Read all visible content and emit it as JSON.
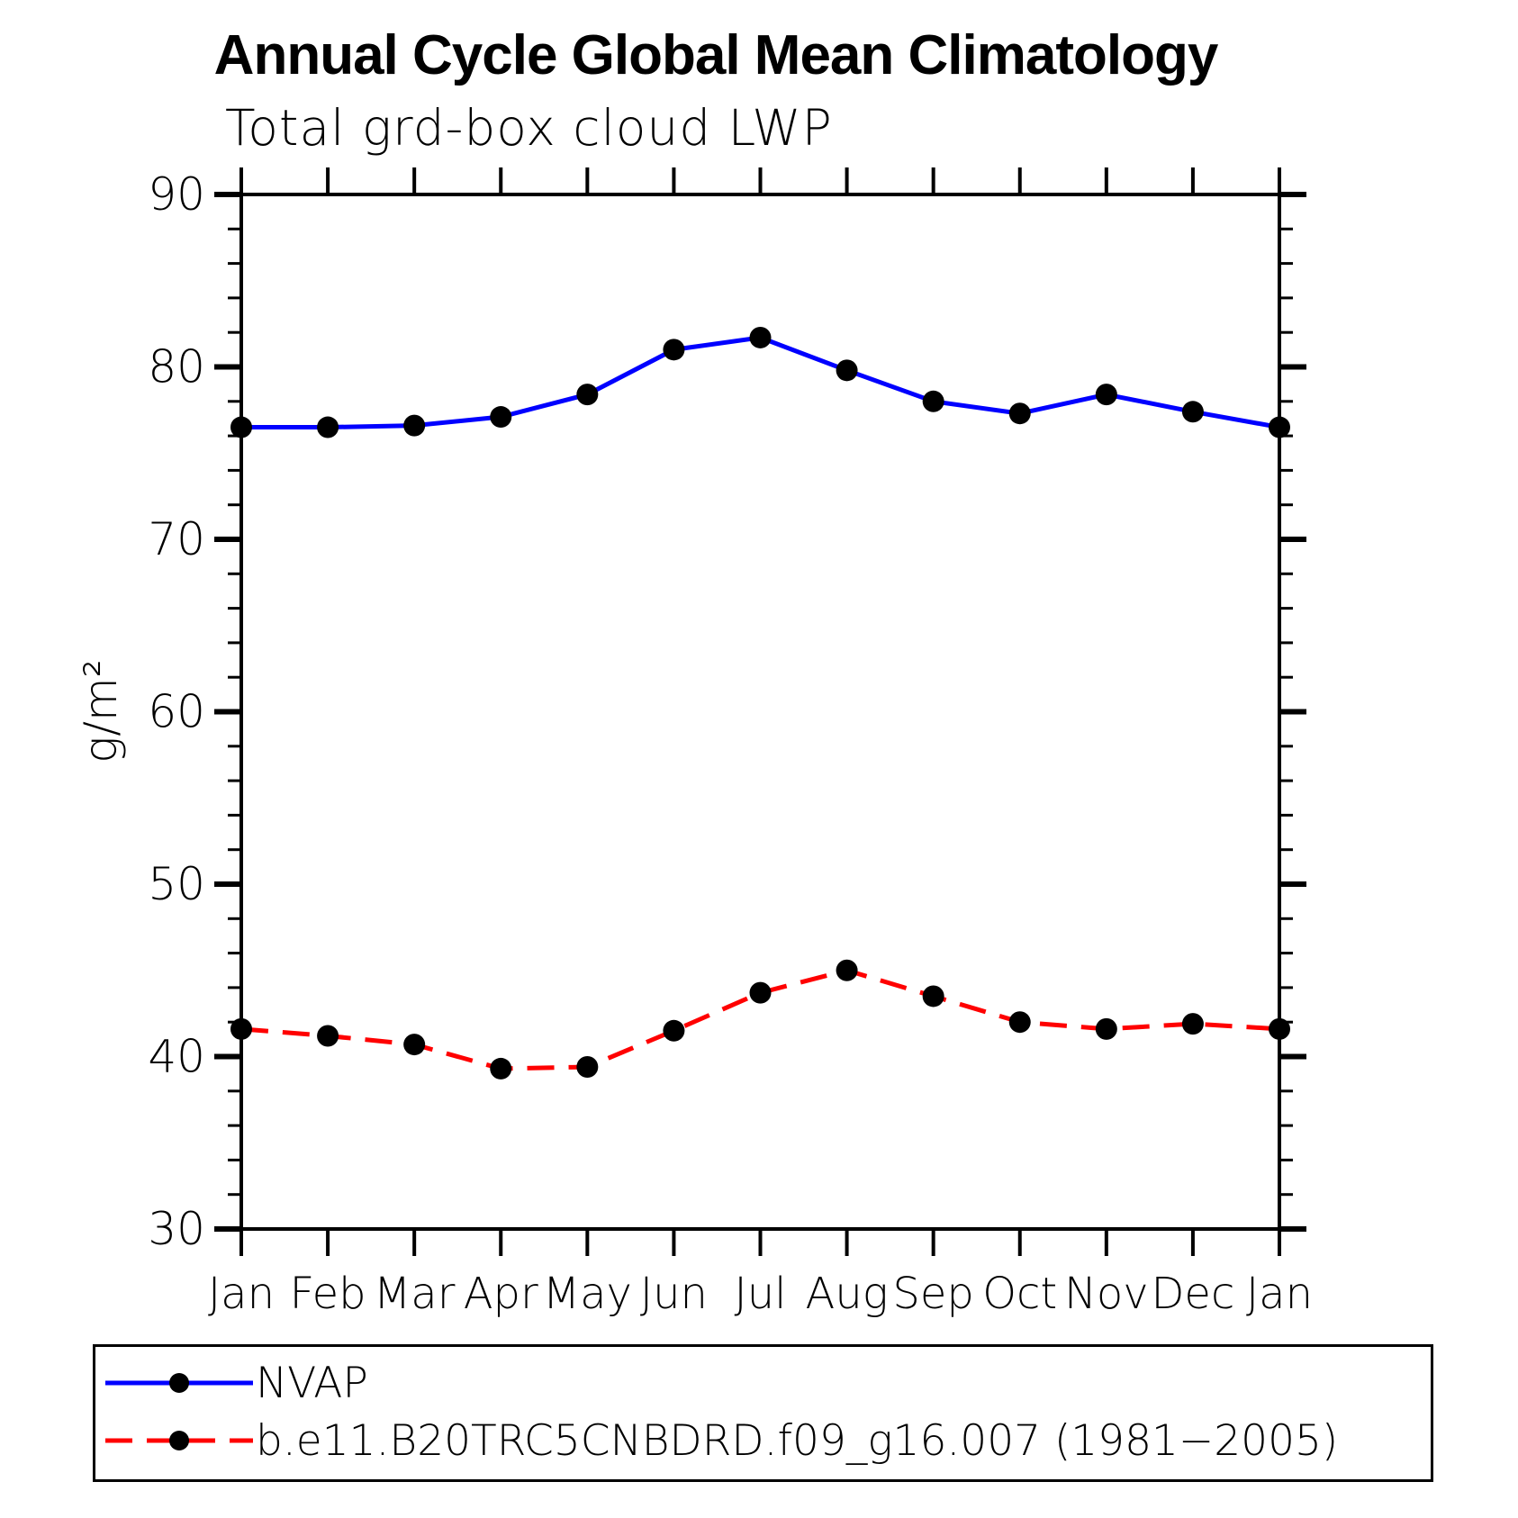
{
  "chart_data": {
    "type": "line",
    "title": "Annual Cycle Global Mean Climatology",
    "subtitle": "Total grd-box cloud LWP",
    "ylabel": "g/m²",
    "categories": [
      "Jan",
      "Feb",
      "Mar",
      "Apr",
      "May",
      "Jun",
      "Jul",
      "Aug",
      "Sep",
      "Oct",
      "Nov",
      "Dec",
      "Jan"
    ],
    "ylim": [
      30,
      90
    ],
    "ytick_major": [
      30,
      40,
      50,
      60,
      70,
      80,
      90
    ],
    "ytick_minor_step": 2,
    "grid": false,
    "legend_position": "bottom",
    "marker": "circle",
    "marker_color": "#000000",
    "axis_color": "#000000",
    "series": [
      {
        "name": "NVAP",
        "color": "#0000ff",
        "style": "solid",
        "values": [
          76.5,
          76.5,
          76.6,
          77.1,
          78.4,
          81.0,
          81.7,
          79.8,
          78.0,
          77.3,
          78.4,
          77.4,
          76.5
        ]
      },
      {
        "name": "b.e11.B20TRC5CNBDRD.f09_g16.007 (1981−2005)",
        "color": "#ff0000",
        "style": "dashed",
        "values": [
          41.6,
          41.2,
          40.7,
          39.3,
          39.4,
          41.5,
          43.7,
          45.0,
          43.5,
          42.0,
          41.6,
          41.9,
          41.6
        ]
      }
    ]
  }
}
